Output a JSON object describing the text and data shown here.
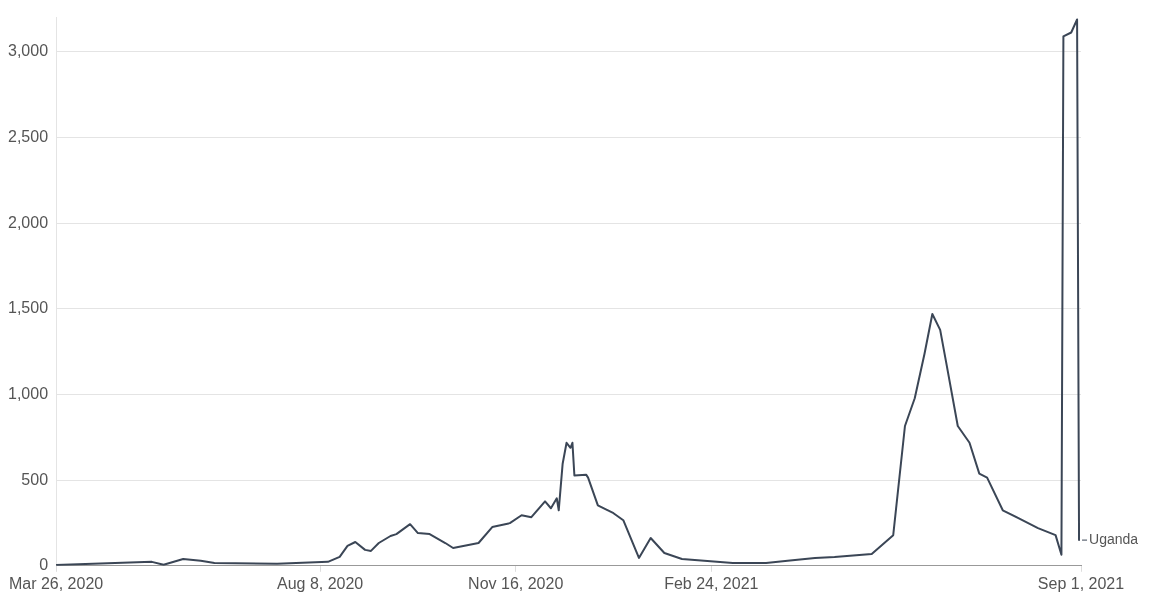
{
  "chart_data": {
    "type": "line",
    "x": [
      "2020-03-26",
      "2020-05-14",
      "2020-05-20",
      "2020-05-30",
      "2020-06-08",
      "2020-06-15",
      "2020-07-17",
      "2020-08-12",
      "2020-08-18",
      "2020-08-22",
      "2020-08-26",
      "2020-08-31",
      "2020-09-03",
      "2020-09-07",
      "2020-09-13",
      "2020-09-16",
      "2020-09-23",
      "2020-09-27",
      "2020-10-03",
      "2020-10-11",
      "2020-10-15",
      "2020-10-28",
      "2020-11-04",
      "2020-11-13",
      "2020-11-19",
      "2020-11-24",
      "2020-12-01",
      "2020-12-04",
      "2020-12-07",
      "2020-12-08",
      "2020-12-10",
      "2020-12-12",
      "2020-12-14",
      "2020-12-15",
      "2020-12-16",
      "2020-12-22",
      "2020-12-23",
      "2020-12-28",
      "2021-01-05",
      "2021-01-10",
      "2021-01-18",
      "2021-01-24",
      "2021-01-31",
      "2021-02-09",
      "2021-03-07",
      "2021-03-24",
      "2021-04-04",
      "2021-04-18",
      "2021-04-28",
      "2021-05-17",
      "2021-05-28",
      "2021-06-03",
      "2021-06-08",
      "2021-06-13",
      "2021-06-17",
      "2021-06-21",
      "2021-06-24",
      "2021-06-30",
      "2021-07-06",
      "2021-07-11",
      "2021-07-15",
      "2021-07-23",
      "2021-07-31",
      "2021-08-10",
      "2021-08-19",
      "2021-08-22",
      "2021-08-23",
      "2021-08-27",
      "2021-08-30",
      "2021-08-31"
    ],
    "series": [
      {
        "name": "Uganda",
        "color": "#3b4656",
        "values": [
          5,
          23,
          6,
          40,
          29,
          17,
          12,
          23,
          52,
          116,
          139,
          93,
          87,
          133,
          174,
          185,
          243,
          191,
          185,
          133,
          104,
          133,
          226,
          249,
          295,
          284,
          376,
          336,
          394,
          324,
          596,
          718,
          689,
          718,
          527,
          532,
          515,
          353,
          307,
          266,
          46,
          162,
          75,
          40,
          17,
          17,
          29,
          46,
          52,
          69,
          179,
          816,
          978,
          1238,
          1470,
          1377,
          1192,
          816,
          718,
          538,
          515,
          324,
          278,
          220,
          179,
          64,
          3090,
          3113,
          3189,
          150
        ]
      }
    ],
    "xlim": [
      "2020-03-26",
      "2021-09-01"
    ],
    "xticks": [
      {
        "value": "2020-03-26",
        "label": "Mar 26, 2020"
      },
      {
        "value": "2020-08-08",
        "label": "Aug 8, 2020"
      },
      {
        "value": "2020-11-16",
        "label": "Nov 16, 2020"
      },
      {
        "value": "2021-02-24",
        "label": "Feb 24, 2021"
      },
      {
        "value": "2021-09-01",
        "label": "Sep 1, 2021"
      }
    ],
    "ylim": [
      0,
      3200
    ],
    "yticks": [
      0,
      500,
      {
        "value": 1000,
        "label": "1,000"
      },
      {
        "value": 1500,
        "label": "1,500"
      },
      {
        "value": 2000,
        "label": "2,000"
      },
      {
        "value": 2500,
        "label": "2,500"
      },
      {
        "value": 3000,
        "label": "3,000"
      }
    ],
    "grid": "y",
    "marker": "none",
    "line_style": "solid"
  }
}
